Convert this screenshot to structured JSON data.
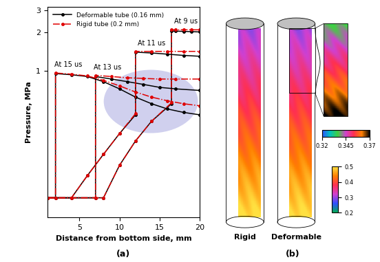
{
  "chart_data": {
    "type": "line",
    "panel_label": "(a)",
    "x_label": "Distance from bottom side, mm",
    "y_label": "Pressure, MPa",
    "log": "y",
    "xlim": [
      1,
      20
    ],
    "xticks": [
      5,
      10,
      15,
      20
    ],
    "ylim": [
      0.07,
      3.2
    ],
    "yticks": [
      1,
      2,
      3
    ],
    "legend": "upper left",
    "series": [
      {
        "name": "Deformable tube (0.16 mm)",
        "color": "#000000",
        "line_style": "solid",
        "marker": "circle",
        "curves": [
          {
            "x": [
              1,
              8,
              10,
              12,
              14,
              16.5,
              16.5,
              17,
              18,
              19,
              20
            ],
            "values": [
              0.1,
              0.1,
              0.18,
              0.28,
              0.4,
              0.55,
              2.05,
              2.05,
              2.04,
              2.03,
              2.02
            ]
          },
          {
            "x": [
              1,
              4,
              6,
              8,
              10,
              12,
              12,
              14,
              16,
              18,
              20
            ],
            "values": [
              0.1,
              0.1,
              0.15,
              0.22,
              0.32,
              0.45,
              1.4,
              1.38,
              1.35,
              1.32,
              1.3
            ]
          },
          {
            "x": [
              1,
              7,
              7,
              9,
              11,
              13,
              15,
              17,
              20
            ],
            "values": [
              0.1,
              0.1,
              0.9,
              0.86,
              0.82,
              0.78,
              0.74,
              0.72,
              0.7
            ]
          },
          {
            "x": [
              1,
              2,
              2,
              4,
              6,
              8,
              10,
              12,
              14,
              16,
              18,
              20
            ],
            "values": [
              0.1,
              0.1,
              0.95,
              0.93,
              0.9,
              0.82,
              0.72,
              0.62,
              0.55,
              0.5,
              0.47,
              0.45
            ]
          }
        ]
      },
      {
        "name": "Rigid tube (0.2 mm)",
        "color": "#e00000",
        "line_style": "dashdot",
        "marker": "circle",
        "curves": [
          {
            "x": [
              1,
              8,
              10,
              12,
              14,
              16.5,
              16.5,
              17,
              18,
              19,
              20
            ],
            "values": [
              0.1,
              0.1,
              0.18,
              0.28,
              0.4,
              0.56,
              2.1,
              2.1,
              2.1,
              2.1,
              2.1
            ]
          },
          {
            "x": [
              1,
              4,
              6,
              8,
              10,
              12,
              12,
              14,
              16,
              18,
              20
            ],
            "values": [
              0.1,
              0.1,
              0.15,
              0.22,
              0.32,
              0.46,
              1.42,
              1.42,
              1.42,
              1.42,
              1.42
            ]
          },
          {
            "x": [
              1,
              7,
              7,
              9,
              11,
              13,
              15,
              17,
              20
            ],
            "values": [
              0.1,
              0.1,
              0.92,
              0.9,
              0.88,
              0.87,
              0.86,
              0.86,
              0.86
            ]
          },
          {
            "x": [
              1,
              2,
              2,
              4,
              6,
              8,
              10,
              12,
              14,
              16,
              18,
              20
            ],
            "values": [
              0.1,
              0.1,
              0.96,
              0.94,
              0.91,
              0.84,
              0.76,
              0.68,
              0.62,
              0.58,
              0.55,
              0.53
            ]
          }
        ]
      }
    ],
    "annotations": [
      {
        "text": "At 9 us",
        "x": 18.3,
        "y": 2.3
      },
      {
        "text": "At 11 us",
        "x": 14,
        "y": 1.55
      },
      {
        "text": "At 13 us",
        "x": 8.5,
        "y": 1.0
      },
      {
        "text": "At 15 us",
        "x": 3.6,
        "y": 1.05
      }
    ]
  },
  "panel_b": {
    "panel_label": "(b)",
    "tube_labels": [
      "Rigid",
      "Deformable"
    ],
    "colorbar": {
      "range": [
        0.2,
        0.5
      ],
      "ticks": [
        0.2,
        0.3,
        0.4,
        0.5
      ]
    },
    "inset_colorbar": {
      "range": [
        0.32,
        0.37
      ],
      "ticks": [
        0.32,
        0.345,
        0.37
      ]
    }
  }
}
